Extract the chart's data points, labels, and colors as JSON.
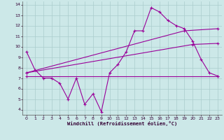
{
  "xlabel": "Windchill (Refroidissement éolien,°C)",
  "bg_color": "#cce8e8",
  "grid_color": "#aacccc",
  "line_color": "#990099",
  "xlim": [
    -0.5,
    23.5
  ],
  "ylim": [
    3.5,
    14.3
  ],
  "xticks": [
    0,
    1,
    2,
    3,
    4,
    5,
    6,
    7,
    8,
    9,
    10,
    11,
    12,
    13,
    14,
    15,
    16,
    17,
    18,
    19,
    20,
    21,
    22,
    23
  ],
  "yticks": [
    4,
    5,
    6,
    7,
    8,
    9,
    10,
    11,
    12,
    13,
    14
  ],
  "line1_x": [
    0,
    1,
    2,
    3,
    4,
    5,
    6,
    7,
    8,
    9,
    10,
    11,
    12,
    13,
    14,
    15,
    16,
    17,
    18,
    19,
    20,
    21,
    22,
    23
  ],
  "line1_y": [
    9.5,
    7.8,
    7.0,
    7.0,
    6.5,
    5.0,
    7.0,
    4.5,
    5.5,
    3.8,
    7.5,
    8.3,
    9.5,
    11.5,
    11.5,
    13.7,
    13.3,
    12.5,
    12.0,
    11.7,
    10.5,
    8.8,
    7.5,
    7.2
  ],
  "line2_x": [
    0,
    23
  ],
  "line2_y": [
    7.2,
    7.2
  ],
  "line3_x": [
    0,
    19,
    23
  ],
  "line3_y": [
    7.5,
    11.5,
    11.7
  ],
  "line4_x": [
    0,
    20,
    23
  ],
  "line4_y": [
    7.5,
    10.2,
    10.3
  ],
  "marker": "+"
}
